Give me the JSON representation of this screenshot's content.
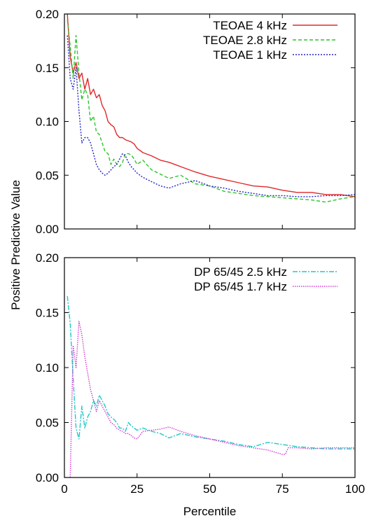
{
  "chart_data": [
    {
      "type": "line",
      "title": "",
      "xlabel": "",
      "ylabel": "Positive Predictive Value",
      "xlim": [
        0,
        100
      ],
      "ylim": [
        0,
        0.2
      ],
      "xticks": [
        0,
        25,
        50,
        75,
        100
      ],
      "xtick_labels": [
        "",
        "",
        "",
        "",
        ""
      ],
      "yticks": [
        0,
        0.05,
        0.1,
        0.15,
        0.2
      ],
      "ytick_labels": [
        "0.00",
        "0.05",
        "0.10",
        "0.15",
        "0.20"
      ],
      "legend_position": "top-right",
      "grid": false,
      "series": [
        {
          "name": "TEOAE 4 kHz",
          "color": "#e0282a",
          "dash": "solid",
          "x": [
            1,
            2,
            3,
            4,
            5,
            6,
            7,
            8,
            9,
            10,
            11,
            12,
            13,
            14,
            15,
            16,
            17,
            18,
            19,
            20,
            21,
            22,
            23,
            24,
            25,
            27,
            30,
            33,
            36,
            40,
            45,
            50,
            55,
            60,
            65,
            70,
            75,
            80,
            85,
            90,
            95,
            100
          ],
          "y": [
            0.2,
            0.16,
            0.145,
            0.155,
            0.14,
            0.145,
            0.13,
            0.14,
            0.125,
            0.13,
            0.122,
            0.125,
            0.115,
            0.11,
            0.1,
            0.097,
            0.095,
            0.088,
            0.085,
            0.085,
            0.083,
            0.082,
            0.081,
            0.079,
            0.075,
            0.071,
            0.068,
            0.064,
            0.062,
            0.058,
            0.053,
            0.049,
            0.046,
            0.043,
            0.04,
            0.039,
            0.036,
            0.034,
            0.034,
            0.032,
            0.032,
            0.03
          ]
        },
        {
          "name": "TEOAE 2.8 kHz",
          "color": "#2ec42e",
          "dash": "5,3",
          "x": [
            1,
            2,
            3,
            4,
            5,
            6,
            7,
            8,
            9,
            10,
            11,
            12,
            13,
            14,
            15,
            16,
            17,
            18,
            19,
            20,
            21,
            22,
            23,
            24,
            25,
            27,
            30,
            33,
            36,
            40,
            45,
            50,
            55,
            60,
            65,
            70,
            75,
            80,
            85,
            90,
            95,
            100
          ],
          "y": [
            0.195,
            0.17,
            0.14,
            0.18,
            0.145,
            0.12,
            0.13,
            0.125,
            0.1,
            0.105,
            0.09,
            0.088,
            0.08,
            0.072,
            0.07,
            0.06,
            0.065,
            0.06,
            0.058,
            0.062,
            0.07,
            0.07,
            0.069,
            0.065,
            0.06,
            0.064,
            0.055,
            0.051,
            0.047,
            0.05,
            0.042,
            0.04,
            0.035,
            0.033,
            0.031,
            0.03,
            0.029,
            0.028,
            0.027,
            0.025,
            0.028,
            0.03
          ]
        },
        {
          "name": "TEOAE 1 kHz",
          "color": "#2323c8",
          "dash": "2,2",
          "x": [
            1,
            2,
            3,
            4,
            5,
            6,
            7,
            8,
            9,
            10,
            11,
            12,
            13,
            14,
            15,
            16,
            17,
            18,
            19,
            20,
            21,
            22,
            23,
            24,
            25,
            27,
            30,
            33,
            36,
            40,
            45,
            50,
            55,
            60,
            65,
            70,
            75,
            80,
            85,
            90,
            95,
            100
          ],
          "y": [
            0.18,
            0.14,
            0.13,
            0.15,
            0.11,
            0.08,
            0.085,
            0.085,
            0.08,
            0.07,
            0.06,
            0.055,
            0.052,
            0.05,
            0.052,
            0.055,
            0.058,
            0.06,
            0.065,
            0.07,
            0.068,
            0.062,
            0.058,
            0.055,
            0.052,
            0.048,
            0.044,
            0.04,
            0.038,
            0.042,
            0.045,
            0.04,
            0.038,
            0.035,
            0.033,
            0.031,
            0.031,
            0.03,
            0.03,
            0.031,
            0.031,
            0.032
          ]
        }
      ]
    },
    {
      "type": "line",
      "title": "",
      "xlabel": "Percentile",
      "ylabel": "",
      "xlim": [
        0,
        100
      ],
      "ylim": [
        0,
        0.2
      ],
      "xticks": [
        0,
        25,
        50,
        75,
        100
      ],
      "xtick_labels": [
        "0",
        "25",
        "50",
        "75",
        "100"
      ],
      "yticks": [
        0,
        0.05,
        0.1,
        0.15,
        0.2
      ],
      "ytick_labels": [
        "0.00",
        "0.05",
        "0.10",
        "0.15",
        "0.20"
      ],
      "legend_position": "top-right",
      "grid": false,
      "series": [
        {
          "name": "DP 65/45 2.5 kHz",
          "color": "#1ec8c8",
          "dash": "7,2,2,2",
          "x": [
            1,
            2,
            3,
            4,
            5,
            6,
            7,
            8,
            9,
            10,
            11,
            12,
            13,
            14,
            15,
            16,
            17,
            18,
            19,
            20,
            21,
            22,
            23,
            24,
            25,
            27,
            30,
            33,
            36,
            40,
            45,
            50,
            55,
            60,
            65,
            70,
            75,
            80,
            85,
            90,
            95,
            100
          ],
          "y": [
            0.165,
            0.14,
            0.09,
            0.045,
            0.035,
            0.065,
            0.045,
            0.055,
            0.06,
            0.07,
            0.065,
            0.075,
            0.07,
            0.065,
            0.058,
            0.055,
            0.053,
            0.05,
            0.045,
            0.045,
            0.042,
            0.05,
            0.047,
            0.045,
            0.043,
            0.045,
            0.042,
            0.04,
            0.036,
            0.04,
            0.037,
            0.035,
            0.033,
            0.03,
            0.028,
            0.032,
            0.03,
            0.028,
            0.027,
            0.026,
            0.026,
            0.026
          ]
        },
        {
          "name": "DP 65/45 1.7 kHz",
          "color": "#d23cd2",
          "dash": "1.5,1.5",
          "x": [
            2,
            3,
            4,
            5,
            6,
            7,
            8,
            9,
            10,
            11,
            12,
            13,
            14,
            15,
            16,
            17,
            18,
            19,
            20,
            21,
            22,
            23,
            24,
            25,
            27,
            30,
            33,
            36,
            40,
            45,
            50,
            55,
            60,
            65,
            70,
            75,
            76,
            77,
            80,
            85,
            90,
            95,
            100
          ],
          "y": [
            0.0,
            0.12,
            0.1,
            0.142,
            0.13,
            0.11,
            0.095,
            0.08,
            0.07,
            0.06,
            0.07,
            0.065,
            0.06,
            0.055,
            0.05,
            0.048,
            0.045,
            0.043,
            0.042,
            0.04,
            0.04,
            0.038,
            0.036,
            0.035,
            0.042,
            0.043,
            0.044,
            0.046,
            0.042,
            0.038,
            0.035,
            0.032,
            0.029,
            0.027,
            0.025,
            0.021,
            0.021,
            0.027,
            0.027,
            0.026,
            0.027,
            0.027,
            0.027
          ]
        }
      ]
    }
  ]
}
